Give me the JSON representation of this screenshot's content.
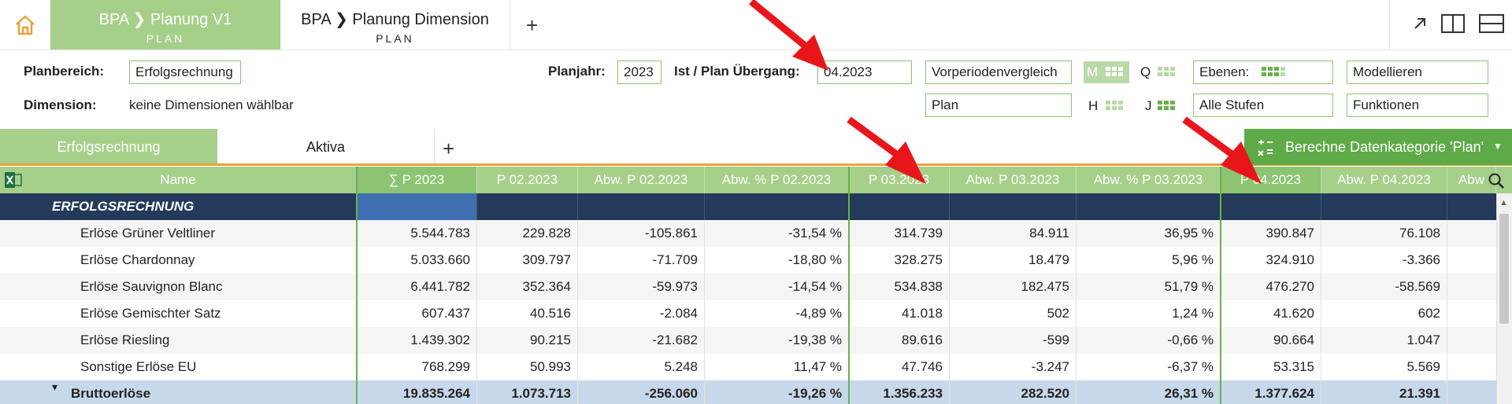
{
  "tabs": [
    {
      "title": "BPA ❯ Planung V1",
      "sub": "PLAN"
    },
    {
      "title": "BPA ❯ Planung Dimension",
      "sub": "PLAN"
    }
  ],
  "params": {
    "planbereich_label": "Planbereich:",
    "planbereich_value": "Erfolgsrechnung",
    "dimension_label": "Dimension:",
    "dimension_value": "keine Dimensionen wählbar",
    "planjahr_label": "Planjahr:",
    "planjahr_value": "2023",
    "ist_label": "Ist / Plan Übergang:",
    "ist_value": "04.2023",
    "vergleich": "Vorperiodenvergleich",
    "plan": "Plan",
    "m": "M",
    "q": "Q",
    "h": "H",
    "j": "J",
    "ebenen": "Ebenen:",
    "stufen": "Alle Stufen",
    "modellieren": "Modellieren",
    "funktionen": "Funktionen"
  },
  "sheet_tabs": [
    "Erfolgsrechnung",
    "Aktiva"
  ],
  "calc_button": "Berechne Datenkategorie 'Plan'",
  "columns": [
    "Name",
    "∑  P  2023",
    "P 02.2023",
    "Abw. P 02.2023",
    "Abw. % P 02.2023",
    "P 03.2023",
    "Abw. P 03.2023",
    "Abw. % P 03.2023",
    "P 04.2023",
    "Abw. P 04.2023",
    "Abw"
  ],
  "section": "ERFOLGSRECHNUNG",
  "rows": [
    {
      "name": "Erlöse Grüner Veltliner",
      "v": [
        "5.544.783",
        "229.828",
        "-105.861",
        "-31,54 %",
        "314.739",
        "84.911",
        "36,95 %",
        "390.847",
        "76.108"
      ]
    },
    {
      "name": "Erlöse Chardonnay",
      "v": [
        "5.033.660",
        "309.797",
        "-71.709",
        "-18,80 %",
        "328.275",
        "18.479",
        "5,96 %",
        "324.910",
        "-3.366"
      ]
    },
    {
      "name": "Erlöse Sauvignon Blanc",
      "v": [
        "6.441.782",
        "352.364",
        "-59.973",
        "-14,54 %",
        "534.838",
        "182.475",
        "51,79 %",
        "476.270",
        "-58.569"
      ]
    },
    {
      "name": "Erlöse Gemischter Satz",
      "v": [
        "607.437",
        "40.516",
        "-2.084",
        "-4,89 %",
        "41.018",
        "502",
        "1,24 %",
        "41.620",
        "602"
      ]
    },
    {
      "name": "Erlöse Riesling",
      "v": [
        "1.439.302",
        "90.215",
        "-21.682",
        "-19,38 %",
        "89.616",
        "-599",
        "-0,66 %",
        "90.664",
        "1.047"
      ]
    },
    {
      "name": "Sonstige Erlöse EU",
      "v": [
        "768.299",
        "50.993",
        "5.248",
        "11,47 %",
        "47.746",
        "-3.247",
        "-6,37 %",
        "53.315",
        "5.569"
      ]
    }
  ],
  "total": {
    "name": "Bruttoerlöse",
    "v": [
      "19.835.264",
      "1.073.713",
      "-256.060",
      "-19,26 %",
      "1.356.233",
      "282.520",
      "26,31 %",
      "1.377.624",
      "21.391"
    ]
  },
  "colors": {
    "green_tab": "#a6cf8a",
    "green_border": "#8cc472",
    "navy": "#233a5a",
    "total_bg": "#c7d8ea",
    "arrow": "#e8161b"
  }
}
